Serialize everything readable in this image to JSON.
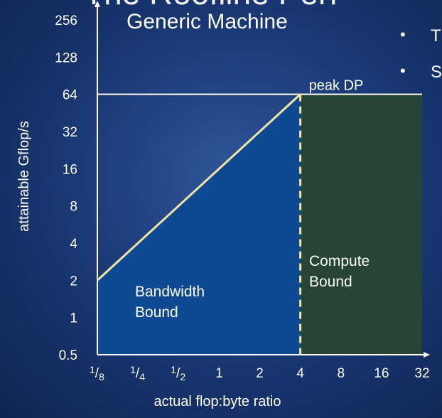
{
  "slide": {
    "title_fragment": "The Roofline Perf",
    "bullets": [
      "T",
      "S"
    ]
  },
  "chart_data": {
    "type": "line",
    "title": "Generic Machine",
    "xlabel": "actual flop:byte ratio",
    "ylabel": "attainable Gflop/s",
    "xscale": "log2",
    "yscale": "log2",
    "xlim": [
      0.125,
      32
    ],
    "ylim": [
      0.5,
      256
    ],
    "x_ticks": [
      {
        "value": 0.125,
        "num": "1",
        "den": "8"
      },
      {
        "value": 0.25,
        "num": "1",
        "den": "4"
      },
      {
        "value": 0.5,
        "num": "1",
        "den": "2"
      },
      {
        "value": 1,
        "label": "1"
      },
      {
        "value": 2,
        "label": "2"
      },
      {
        "value": 4,
        "label": "4"
      },
      {
        "value": 8,
        "label": "8"
      },
      {
        "value": 16,
        "label": "16"
      },
      {
        "value": 32,
        "label": "32"
      }
    ],
    "y_ticks": [
      {
        "value": 0.5,
        "label": "0.5"
      },
      {
        "value": 1,
        "label": "1"
      },
      {
        "value": 2,
        "label": "2"
      },
      {
        "value": 4,
        "label": "4"
      },
      {
        "value": 8,
        "label": "8"
      },
      {
        "value": 16,
        "label": "16"
      },
      {
        "value": 32,
        "label": "32"
      },
      {
        "value": 64,
        "label": "64"
      },
      {
        "value": 128,
        "label": "128"
      },
      {
        "value": 256,
        "label": "256"
      }
    ],
    "roofline": [
      {
        "x": 0.125,
        "y": 2
      },
      {
        "x": 4,
        "y": 64
      },
      {
        "x": 32,
        "y": 64
      }
    ],
    "ridge_point_x": 4,
    "peak_label": "peak DP",
    "regions": [
      {
        "label_lines": [
          "Bandwidth",
          "Bound"
        ],
        "x_range": [
          0.125,
          4
        ],
        "color": "#0d4a92"
      },
      {
        "label_lines": [
          "Compute",
          "Bound"
        ],
        "x_range": [
          4,
          32
        ],
        "color": "#274537"
      }
    ],
    "colors": {
      "roofline": "#f5e5a0",
      "axis": "#ffffff",
      "peak_line": "#ffffff"
    }
  }
}
